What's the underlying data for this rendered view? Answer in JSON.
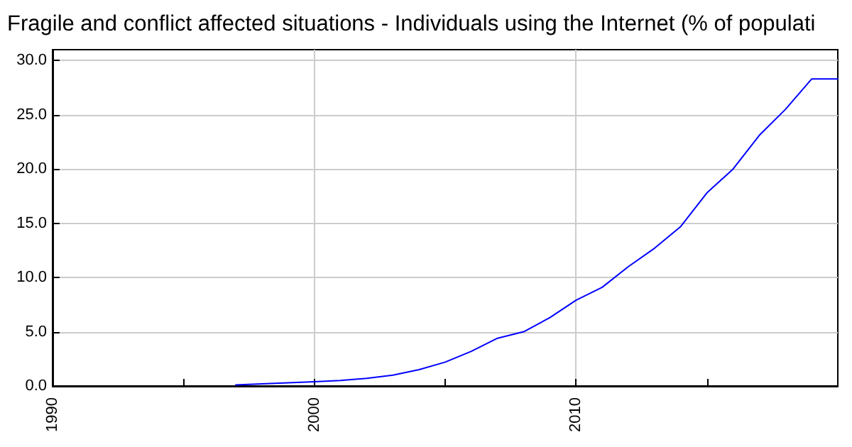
{
  "chart_data": {
    "type": "line",
    "title": "Fragile and conflict affected situations - Individuals using the Internet (% of populati",
    "x": [
      1997,
      1998,
      1999,
      2000,
      2001,
      2002,
      2003,
      2004,
      2005,
      2006,
      2007,
      2008,
      2009,
      2010,
      2011,
      2012,
      2013,
      2014,
      2015,
      2016,
      2017,
      2018,
      2019,
      2020
    ],
    "series": [
      {
        "color": "#0000ff",
        "values": [
          0.1,
          0.2,
          0.3,
          0.4,
          0.5,
          0.7,
          1.0,
          1.5,
          2.2,
          3.2,
          4.4,
          5.0,
          6.3,
          7.9,
          9.1,
          11.0,
          12.7,
          14.7,
          17.8,
          20.0,
          23.1,
          25.5,
          28.3,
          28.3
        ]
      }
    ],
    "xlim": [
      1990,
      2020
    ],
    "xticks": [
      1990,
      {
        "value": 1995,
        "label": null
      },
      2000,
      {
        "value": 2005,
        "label": null
      },
      2010,
      {
        "value": 2015,
        "label": null
      }
    ],
    "ylim": [
      0,
      31
    ],
    "yticks": [
      {
        "value": 0,
        "label": "0.0"
      },
      {
        "value": 5,
        "label": "5.0"
      },
      {
        "value": 10,
        "label": "10.0"
      },
      {
        "value": 15,
        "label": "15.0"
      },
      {
        "value": 20,
        "label": "20.0"
      },
      {
        "value": 25,
        "label": "25.0"
      },
      {
        "value": 30,
        "label": "30.0"
      }
    ],
    "grid": true,
    "marker": "none",
    "line_style": "solid"
  }
}
